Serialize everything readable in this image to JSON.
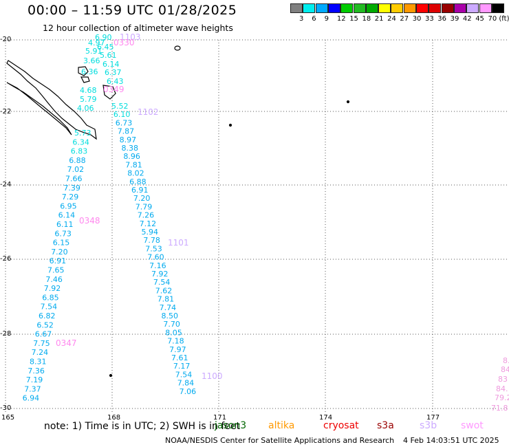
{
  "title": "00:00 – 11:59 UTC 01/28/2025",
  "subtitle": "12 hour collection of altimeter wave heights",
  "legend": {
    "labels": [
      "3",
      "6",
      "9",
      "12",
      "15",
      "18",
      "21",
      "24",
      "27",
      "30",
      "33",
      "36",
      "39",
      "42",
      "45",
      "70 (ft)"
    ],
    "colors": [
      "#808080",
      "#00eeee",
      "#00aaff",
      "#0000ff",
      "#00cc00",
      "#22bb22",
      "#00aa00",
      "#ffff00",
      "#ffcc00",
      "#ff9900",
      "#ff0000",
      "#dd0000",
      "#990000",
      "#aa00aa",
      "#ccaaff",
      "#ff99ff",
      "#000000"
    ]
  },
  "axes": {
    "lat_labels": [
      "-20",
      "-22",
      "-24",
      "-26",
      "-28",
      "-30"
    ],
    "lon_labels": [
      "165",
      "168",
      "171",
      "174",
      "177"
    ]
  },
  "tracks": [
    {
      "id": "1103",
      "color": "#ccaaff",
      "pass_labels": [
        {
          "text": "1103"
        }
      ]
    },
    {
      "id": "1102",
      "color": "#ccaaff",
      "pass_labels": [
        {
          "text": "1102"
        }
      ]
    },
    {
      "id": "1101",
      "color": "#ccaaff",
      "pass_labels": [
        {
          "text": "1101"
        }
      ]
    },
    {
      "id": "1100",
      "color": "#ccaaff",
      "pass_labels": [
        {
          "text": "1100"
        }
      ]
    }
  ],
  "values_col_a": [
    "4.97",
    "5.91",
    "3.66",
    "6.36",
    "4.68",
    "5.79",
    "4.06"
  ],
  "values_col_b": [
    "6.90",
    "6.45",
    "5.61",
    "6.14",
    "6.37",
    "6.43"
  ],
  "values_col_c": [
    "5.52",
    "6.10",
    "6.73",
    "7.87",
    "8.97",
    "8.38",
    "8.96",
    "7.81",
    "8.02",
    "6.88",
    "6.91",
    "7.20",
    "7.79",
    "7.26",
    "7.12",
    "5.94",
    "7.78",
    "7.53",
    "7.60",
    "7.16",
    "7.92",
    "7.54",
    "7.62",
    "7.81",
    "7.74",
    "8.50",
    "7.70",
    "8.05",
    "7.18",
    "7.97",
    "7.61",
    "7.17",
    "7.54",
    "7.84",
    "7.06"
  ],
  "values_col_d": [
    "5.73",
    "6.34",
    "6.83",
    "6.88",
    "7.02",
    "7.66",
    "7.39",
    "7.29",
    "6.95",
    "6.14",
    "6.11",
    "6.73",
    "6.15",
    "7.20",
    "6.91",
    "7.65",
    "7.46",
    "7.92",
    "6.85",
    "7.54",
    "6.82",
    "6.52",
    "6.67",
    "7.75",
    "7.24",
    "8.31",
    "7.36",
    "7.19",
    "7.37",
    "6.94"
  ],
  "pass_labels": [
    "0330",
    "0349",
    "0348",
    "0347"
  ],
  "right_edge_values": [
    "8.",
    "84",
    "83",
    "84.",
    "79.2",
    "71.8"
  ],
  "note": "note: 1) Time is in UTC; 2) SWH is in feet",
  "missions": [
    {
      "name": "jason3",
      "color": "#006600"
    },
    {
      "name": "altika",
      "color": "#ff9900"
    },
    {
      "name": "cryosat",
      "color": "#ee0000"
    },
    {
      "name": "s3a",
      "color": "#990000"
    },
    {
      "name": "s3b",
      "color": "#ccaaff"
    },
    {
      "name": "swot",
      "color": "#ff99ff"
    }
  ],
  "footer_left": "NOAA/NESDIS Center for Satellite Applications and Research",
  "footer_right": "4 Feb 14:03:51 UTC 2025"
}
